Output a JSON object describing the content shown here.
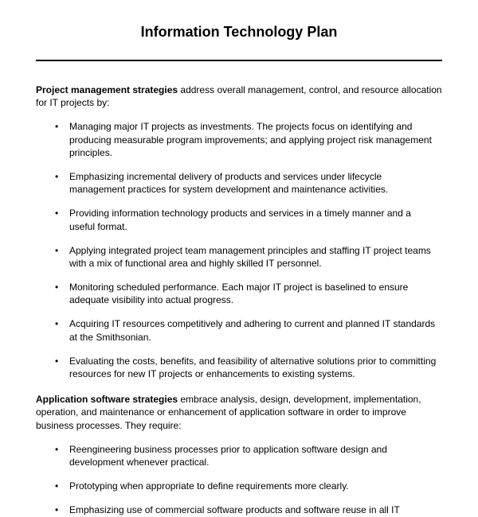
{
  "title": "Information Technology Plan",
  "section1": {
    "lead_bold": "Project management strategies",
    "lead_rest": " address overall management, control, and resource allocation for IT projects by:",
    "items": [
      "Managing major IT projects as investments. The projects focus on identifying and producing measurable program improvements; and applying project risk management principles.",
      "Emphasizing incremental delivery of products and services under lifecycle management practices for system development and maintenance activities.",
      "Providing information technology products and services in a timely manner and a useful format.",
      "Applying integrated project team management principles and staffing IT project teams with a mix of functional area and highly skilled IT personnel.",
      "Monitoring scheduled performance. Each major IT project is baselined to ensure adequate visibility into actual progress.",
      "Acquiring IT resources competitively and adhering to current and planned IT standards at the Smithsonian.",
      "Evaluating the costs, benefits, and feasibility of alternative solutions prior to committing resources for new IT projects or enhancements to existing systems."
    ]
  },
  "section2": {
    "lead_bold": "Application software strategies",
    "lead_rest": " embrace analysis, design, development, implementation, operation, and maintenance or enhancement of application software in order to improve business processes. They require:",
    "items": [
      "Reengineering business processes prior to application software design and development whenever practical.",
      "Prototyping when appropriate to define requirements more clearly.",
      "Emphasizing use of commercial software products and software reuse in all IT"
    ]
  }
}
